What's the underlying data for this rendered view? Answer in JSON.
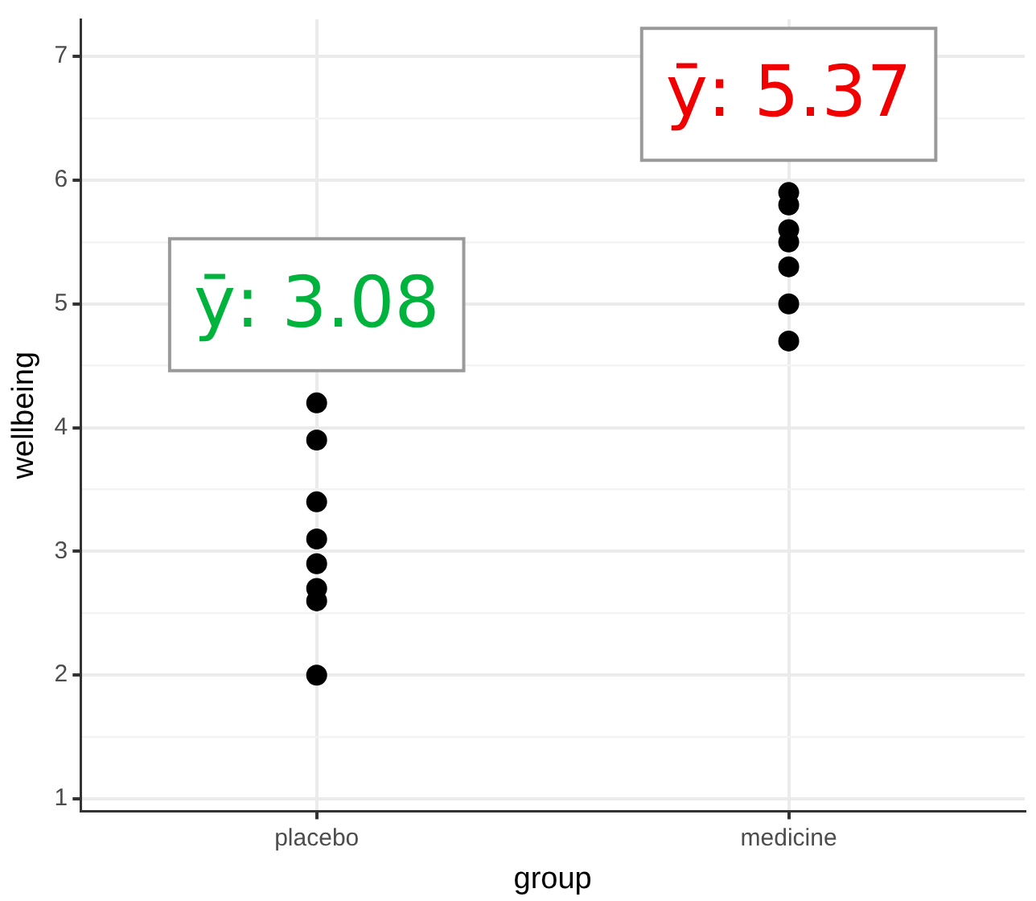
{
  "chart_data": {
    "type": "scatter",
    "xlabel": "group",
    "ylabel": "wellbeing",
    "categories": [
      "placebo",
      "medicine"
    ],
    "series": [
      {
        "type": "scatter",
        "color": "#000000",
        "x": [
          "placebo",
          "placebo",
          "placebo",
          "placebo",
          "placebo",
          "placebo",
          "placebo",
          "placebo",
          "medicine",
          "medicine",
          "medicine",
          "medicine",
          "medicine",
          "medicine",
          "medicine"
        ],
        "values": [
          4.2,
          3.9,
          3.4,
          3.1,
          2.9,
          2.7,
          2.6,
          2.0,
          5.9,
          5.8,
          5.6,
          5.5,
          5.3,
          5.0,
          4.7
        ]
      }
    ],
    "ylim": [
      0.9,
      7.3
    ],
    "yticks": [
      1,
      {
        "value": 1.5,
        "label": null
      },
      2,
      {
        "value": 2.5,
        "label": null
      },
      3,
      {
        "value": 3.5,
        "label": null
      },
      4,
      {
        "value": 4.5,
        "label": null
      },
      5,
      {
        "value": 5.5,
        "label": null
      },
      6,
      {
        "value": 6.5,
        "label": null
      },
      7
    ],
    "grid": true,
    "legend": false,
    "marker": "circle",
    "annotations": [
      "ȳ: 3.08",
      "ȳ: 5.37"
    ]
  }
}
